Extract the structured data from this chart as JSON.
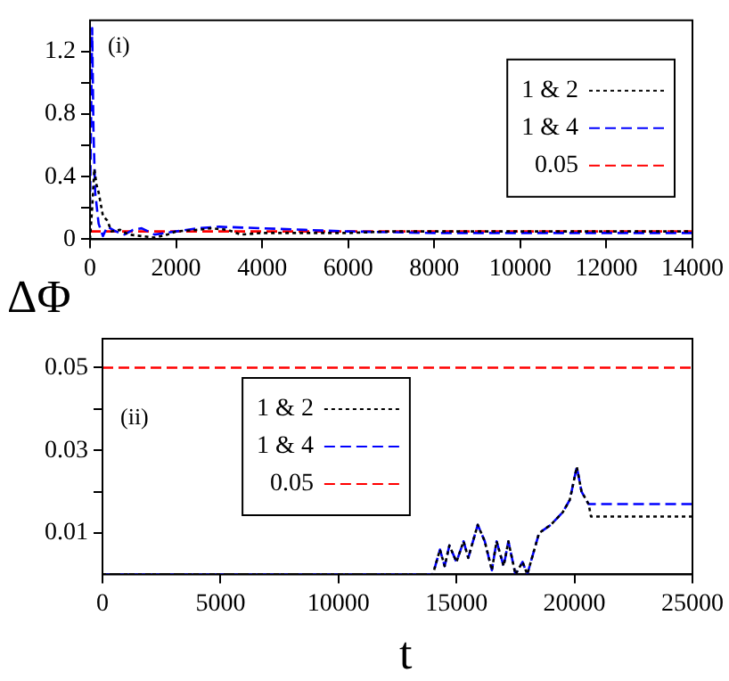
{
  "chart_data": [
    {
      "type": "line",
      "ylabel": "ΔΦ",
      "annotations": [
        "(i)"
      ],
      "legend": "top right",
      "grid": false,
      "xlim": [
        0,
        14000
      ],
      "xticks": [
        0,
        2000,
        4000,
        6000,
        8000,
        10000,
        12000,
        14000
      ],
      "ylim": [
        0,
        1.4
      ],
      "yticks": [
        0,
        {
          "value": 0.2,
          "label": null
        },
        0.4,
        {
          "value": 0.6,
          "label": null
        },
        0.8,
        {
          "value": 1.0,
          "label": null
        },
        1.2
      ],
      "series": [
        {
          "name": "1 & 2",
          "color": "#000000",
          "line_style": "dotted",
          "x": [
            0,
            50,
            100,
            150,
            200,
            300,
            400,
            500,
            700,
            900,
            1200,
            1500,
            1800,
            2000,
            2500,
            2800,
            3200,
            3500,
            4000,
            5000,
            6000,
            7000,
            8000,
            10000,
            14000
          ],
          "values": [
            0,
            0.2,
            0.45,
            0.35,
            0.3,
            0.15,
            0.12,
            0.05,
            0.06,
            0.03,
            0.02,
            0.01,
            0.03,
            0.05,
            0.06,
            0.07,
            0.06,
            0.03,
            0.04,
            0.04,
            0.04,
            0.05,
            0.05,
            0.05,
            0.05
          ]
        },
        {
          "name": "1 & 4",
          "color": "#0000ff",
          "line_style": "dashed",
          "x": [
            0,
            50,
            80,
            120,
            200,
            300,
            400,
            600,
            800,
            1000,
            1200,
            1500,
            2000,
            2500,
            3000,
            4000,
            5000,
            6000,
            8000,
            10000,
            14000
          ],
          "values": [
            0.2,
            1.35,
            0.7,
            0.3,
            0.1,
            0.02,
            0.08,
            0.05,
            0.03,
            0.06,
            0.07,
            0.03,
            0.05,
            0.07,
            0.08,
            0.07,
            0.06,
            0.05,
            0.04,
            0.04,
            0.04
          ]
        },
        {
          "name": "0.05",
          "color": "#ff0000",
          "line_style": "dashed",
          "x": [
            0,
            14000
          ],
          "values": [
            0.05,
            0.05
          ]
        }
      ]
    },
    {
      "type": "line",
      "xlabel": "t",
      "annotations": [
        "(ii)"
      ],
      "legend": "top",
      "grid": false,
      "xlim": [
        0,
        25000
      ],
      "xticks": [
        0,
        5000,
        10000,
        15000,
        20000,
        25000
      ],
      "ylim": [
        0,
        0.057
      ],
      "yticks": [
        0.01,
        {
          "value": 0.02,
          "label": null
        },
        0.03,
        {
          "value": 0.04,
          "label": null
        },
        0.05
      ],
      "series": [
        {
          "name": "1 & 2",
          "color": "#000000",
          "line_style": "dotted",
          "x": [
            0,
            14000,
            14300,
            14500,
            14700,
            15000,
            15300,
            15500,
            15900,
            16200,
            16500,
            16700,
            17000,
            17200,
            17500,
            17800,
            18000,
            18500,
            19000,
            19500,
            19800,
            20100,
            20300,
            20600,
            20700,
            25000
          ],
          "values": [
            0,
            0,
            0.006,
            0.002,
            0.007,
            0.003,
            0.008,
            0.004,
            0.012,
            0.008,
            0.001,
            0.008,
            0.002,
            0.008,
            0,
            0.003,
            0,
            0.01,
            0.012,
            0.015,
            0.018,
            0.026,
            0.02,
            0.017,
            0.014,
            0.014
          ]
        },
        {
          "name": "1 & 4",
          "color": "#0000ff",
          "line_style": "dashed",
          "x": [
            0,
            14000,
            14300,
            14500,
            14700,
            15000,
            15300,
            15500,
            15900,
            16200,
            16500,
            16700,
            17000,
            17200,
            17500,
            17800,
            18000,
            18500,
            19000,
            19500,
            19800,
            20100,
            20300,
            20600,
            25000
          ],
          "values": [
            0,
            0,
            0.006,
            0.002,
            0.007,
            0.003,
            0.008,
            0.004,
            0.012,
            0.008,
            0.001,
            0.008,
            0.002,
            0.008,
            0,
            0.003,
            0,
            0.01,
            0.012,
            0.015,
            0.018,
            0.026,
            0.02,
            0.017,
            0.017
          ]
        },
        {
          "name": "0.05",
          "color": "#ff0000",
          "line_style": "dashed",
          "x": [
            0,
            25000
          ],
          "values": [
            0.05,
            0.05
          ]
        }
      ]
    }
  ]
}
